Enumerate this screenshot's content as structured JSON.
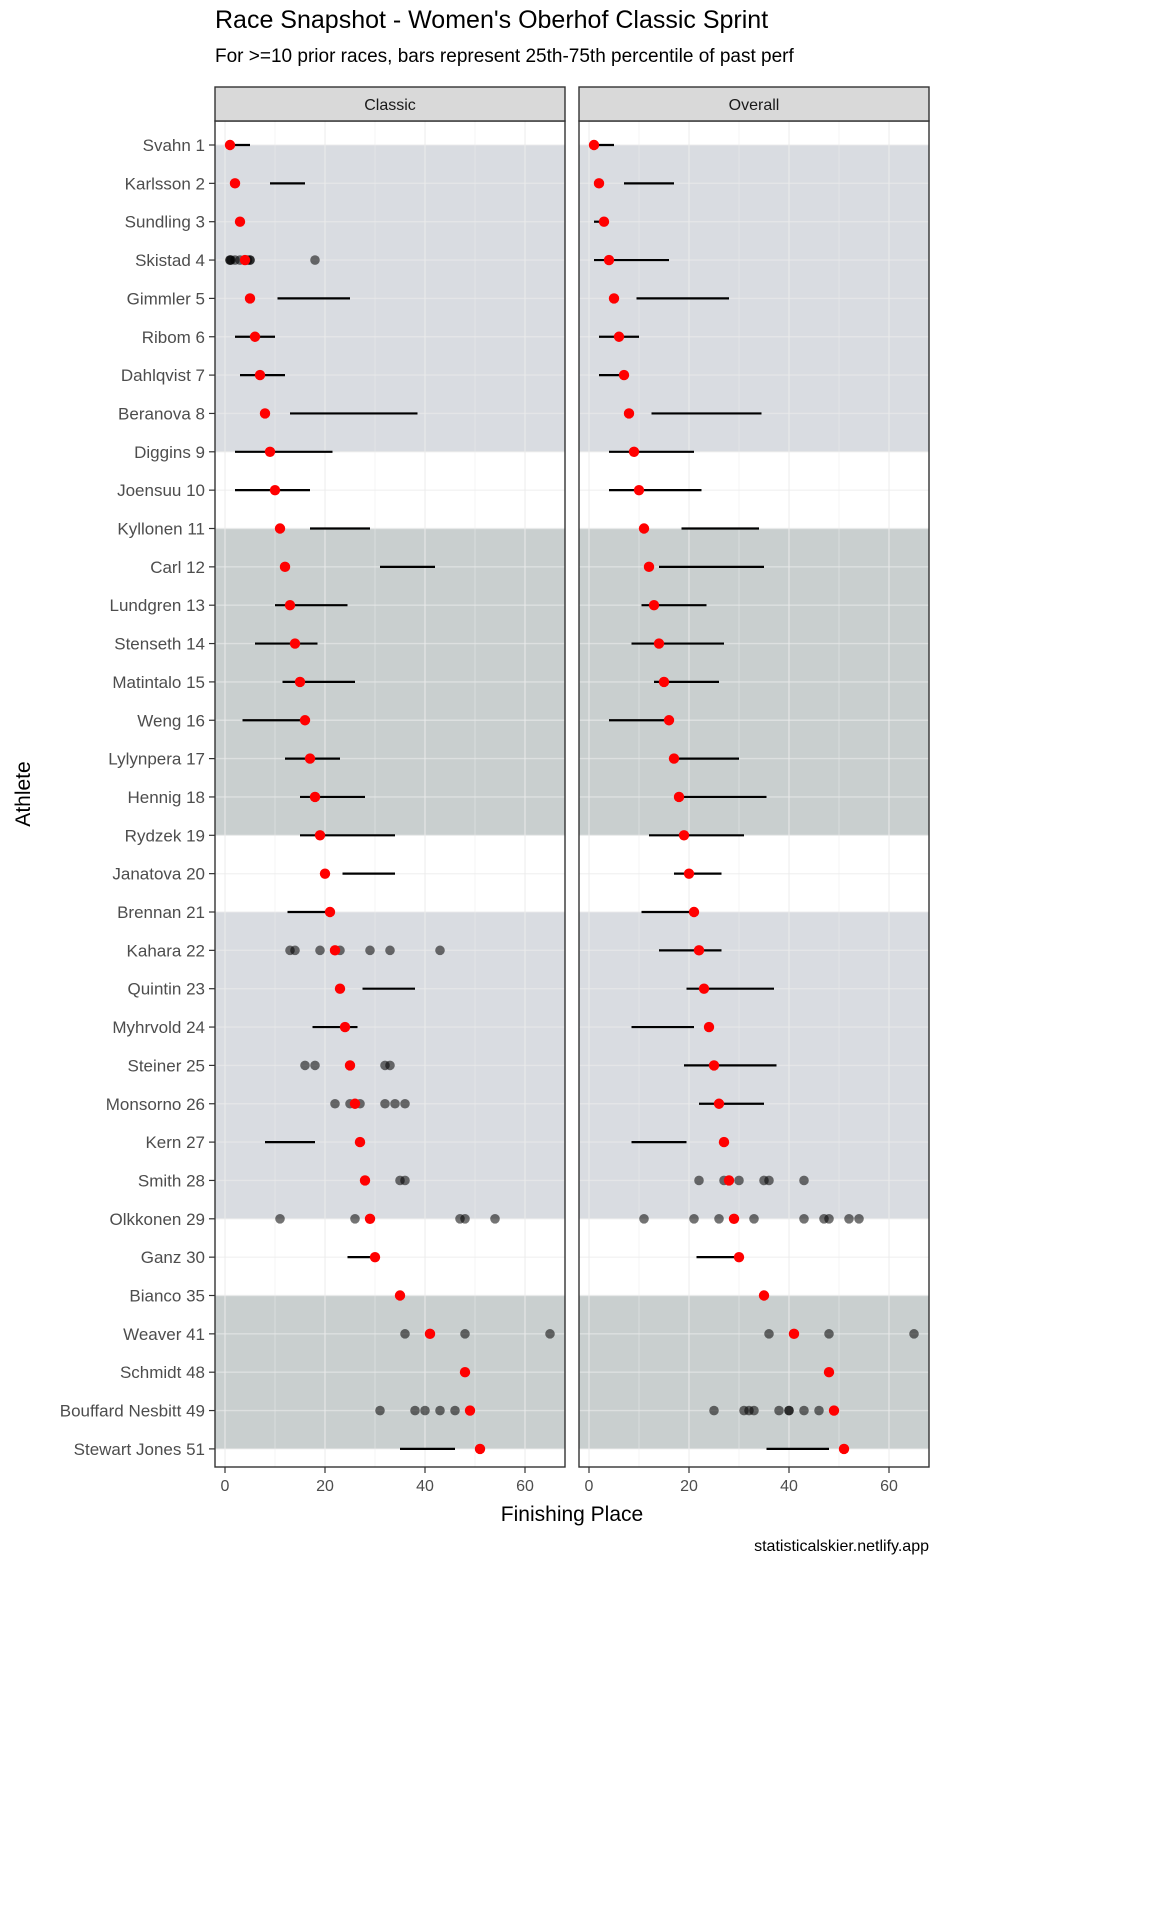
{
  "chart_data": {
    "type": "scatter",
    "title": "Race Snapshot -  Women's Oberhof Classic Sprint",
    "subtitle": "For >=10 prior races, bars represent 25th-75th percentile of past perf",
    "caption": "statisticalskier.netlify.app",
    "xlabel": "Finishing Place",
    "ylabel": "Athlete",
    "xlim": [
      -2,
      68
    ],
    "xticks": [
      0,
      20,
      40,
      60
    ],
    "grid": true,
    "colors": {
      "panel_strip": "#d9d9d9",
      "band_light": "#d9dce1",
      "band_dark": "#c9cfcf",
      "current": "#ff0000",
      "past": "#000000",
      "gridline": "#ebebeb"
    },
    "groups": [
      {
        "from": 1,
        "to": 9,
        "shade": "light"
      },
      {
        "from": 11,
        "to": 19,
        "shade": "dark"
      },
      {
        "from": 21,
        "to": 29,
        "shade": "light"
      },
      {
        "from": 31,
        "to": 35,
        "shade": "dark"
      }
    ],
    "athletes": [
      "Svahn 1",
      "Karlsson 2",
      "Sundling 3",
      "Skistad 4",
      "Gimmler 5",
      "Ribom 6",
      "Dahlqvist 7",
      "Beranova 8",
      "Diggins 9",
      "Joensuu 10",
      "Kyllonen 11",
      "Carl 12",
      "Lundgren 13",
      "Stenseth 14",
      "Matintalo 15",
      "Weng 16",
      "Lylynpera 17",
      "Hennig 18",
      "Rydzek 19",
      "Janatova 20",
      "Brennan 21",
      "Kahara 22",
      "Quintin 23",
      "Myhrvold 24",
      "Steiner 25",
      "Monsorno 26",
      "Kern 27",
      "Smith 28",
      "Olkkonen 29",
      "Ganz 30",
      "Bianco 35",
      "Weaver 41",
      "Schmidt 48",
      "Bouffard Nesbitt 49",
      "Stewart Jones 51"
    ],
    "current_place": [
      1,
      2,
      3,
      4,
      5,
      6,
      7,
      8,
      9,
      10,
      11,
      12,
      13,
      14,
      15,
      16,
      17,
      18,
      19,
      20,
      21,
      22,
      23,
      24,
      25,
      26,
      27,
      28,
      29,
      30,
      35,
      41,
      48,
      49,
      51
    ],
    "panels": [
      {
        "name": "Classic",
        "bars": [
          [
            1,
            5
          ],
          [
            9,
            16
          ],
          null,
          null,
          [
            10.5,
            25
          ],
          [
            2,
            10
          ],
          [
            3,
            12
          ],
          [
            13,
            38.5
          ],
          [
            2,
            21.5
          ],
          [
            2,
            17
          ],
          [
            17,
            29
          ],
          [
            31,
            42
          ],
          [
            10,
            24.5
          ],
          [
            6,
            18.5
          ],
          [
            11.5,
            26
          ],
          [
            3.5,
            16
          ],
          [
            12,
            23
          ],
          [
            15,
            28
          ],
          [
            15,
            34
          ],
          [
            23.5,
            34
          ],
          [
            12.5,
            21
          ],
          null,
          [
            27.5,
            38
          ],
          [
            17.5,
            26.5
          ],
          null,
          null,
          [
            8,
            18
          ],
          null,
          null,
          [
            24.5,
            30
          ],
          null,
          null,
          null,
          null,
          [
            35,
            46
          ]
        ],
        "past": [
          [],
          [],
          [],
          [
            1,
            1,
            1.2,
            2,
            3,
            4,
            4.5,
            5,
            5,
            18
          ],
          [],
          [],
          [],
          [],
          [],
          [],
          [],
          [],
          [],
          [],
          [],
          [],
          [],
          [],
          [],
          [],
          [],
          [
            13,
            14,
            19,
            23,
            29,
            33,
            43
          ],
          [],
          [],
          [
            16,
            18,
            32,
            33
          ],
          [
            22,
            25,
            27,
            32,
            34,
            36
          ],
          [],
          [
            35,
            36
          ],
          [
            11,
            26,
            47,
            48,
            54
          ],
          [],
          [],
          [
            36,
            48,
            65
          ],
          [],
          [
            31,
            38,
            40,
            43,
            46
          ],
          []
        ]
      },
      {
        "name": "Overall",
        "bars": [
          [
            1,
            5
          ],
          [
            7,
            17
          ],
          [
            1,
            3
          ],
          [
            1,
            16
          ],
          [
            9.5,
            28
          ],
          [
            2,
            10
          ],
          [
            2,
            7
          ],
          [
            12.5,
            34.5
          ],
          [
            4,
            21
          ],
          [
            4,
            22.5
          ],
          [
            18.5,
            34
          ],
          [
            14,
            35
          ],
          [
            10.5,
            23.5
          ],
          [
            8.5,
            27
          ],
          [
            13,
            26
          ],
          [
            4,
            16
          ],
          [
            18,
            30
          ],
          [
            18,
            35.5
          ],
          [
            12,
            31
          ],
          [
            17,
            26.5
          ],
          [
            10.5,
            21
          ],
          [
            14,
            26.5
          ],
          [
            19.5,
            37
          ],
          [
            8.5,
            21
          ],
          [
            19,
            37.5
          ],
          [
            22,
            35
          ],
          [
            8.5,
            19.5
          ],
          null,
          null,
          [
            21.5,
            30
          ],
          null,
          null,
          null,
          null,
          [
            35.5,
            48
          ]
        ],
        "past": [
          [],
          [],
          [],
          [],
          [],
          [],
          [],
          [],
          [],
          [],
          [],
          [],
          [],
          [],
          [],
          [],
          [],
          [],
          [],
          [],
          [],
          [],
          [],
          [],
          [],
          [],
          [],
          [
            22,
            27,
            30,
            35,
            36,
            43
          ],
          [
            11,
            21,
            26,
            33,
            43,
            47,
            48,
            52,
            54
          ],
          [],
          [],
          [
            36,
            48,
            65
          ],
          [],
          [
            25,
            31,
            32,
            33,
            38,
            40,
            40,
            43,
            46
          ],
          []
        ]
      }
    ]
  }
}
